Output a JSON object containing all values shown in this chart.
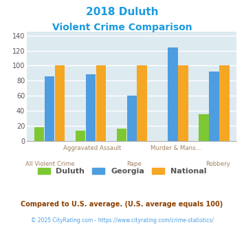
{
  "title_line1": "2018 Duluth",
  "title_line2": "Violent Crime Comparison",
  "title_color": "#1a9ae0",
  "cat_top": [
    "",
    "Aggravated Assault",
    "",
    "Murder & Mans...",
    ""
  ],
  "cat_bottom": [
    "All Violent Crime",
    "",
    "Rape",
    "",
    "Robbery"
  ],
  "duluth": [
    18,
    13,
    16,
    0,
    35
  ],
  "georgia": [
    86,
    88,
    60,
    124,
    92
  ],
  "national": [
    100,
    100,
    100,
    100,
    100
  ],
  "duluth_color": "#7dc832",
  "georgia_color": "#4d9de0",
  "national_color": "#f5a623",
  "ylim": [
    0,
    145
  ],
  "yticks": [
    0,
    20,
    40,
    60,
    80,
    100,
    120,
    140
  ],
  "plot_bg": "#ddeaf0",
  "grid_color": "#ffffff",
  "label_color": "#a08060",
  "footnote1": "Compared to U.S. average. (U.S. average equals 100)",
  "footnote2": "© 2025 CityRating.com - https://www.cityrating.com/crime-statistics/",
  "footnote1_color": "#8b4000",
  "footnote2_color": "#4d9de0"
}
